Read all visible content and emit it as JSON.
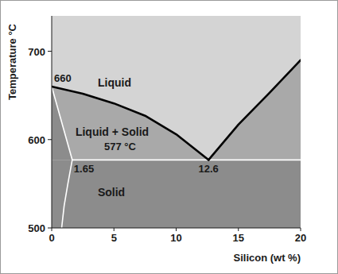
{
  "chart_data": {
    "type": "line",
    "x_label": "Silicon (wt %)",
    "y_label": "Temperature °C",
    "xlim": [
      0,
      20
    ],
    "ylim": [
      500,
      740
    ],
    "xticks": [
      0,
      5,
      10,
      15,
      20
    ],
    "yticks": [
      500,
      600,
      700
    ],
    "grid": false,
    "regions": [
      {
        "label": "Liquid",
        "color": "#d4d4d4"
      },
      {
        "label": "Liquid + Solid",
        "color": "#a9a9a9"
      },
      {
        "label": "Solid",
        "color": "#8c8c8c"
      }
    ],
    "annotations": [
      "660",
      "577 °C",
      "1.65",
      "12.6"
    ],
    "series": [
      {
        "color": "#000000",
        "x": [
          0,
          2.5,
          5,
          7.5,
          10,
          12.6
        ],
        "values": [
          660,
          652,
          641,
          627,
          606,
          577
        ]
      },
      {
        "color": "#000000",
        "x": [
          12.6,
          15,
          17.5,
          20
        ],
        "values": [
          577,
          617,
          653,
          690
        ]
      },
      {
        "color": "#ffffff",
        "x": [
          0,
          1.65
        ],
        "values": [
          660,
          577
        ]
      },
      {
        "color": "#ffffff",
        "x": [
          1.65,
          20
        ],
        "values": [
          577,
          577
        ]
      },
      {
        "color": "#ffffff",
        "x": [
          1.65,
          1.3,
          1.0,
          0.8
        ],
        "values": [
          577,
          550,
          525,
          500
        ]
      }
    ]
  }
}
